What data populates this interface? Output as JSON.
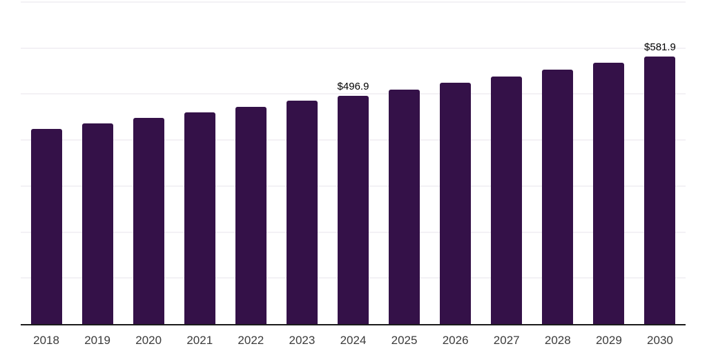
{
  "chart_data": {
    "type": "bar",
    "title": "",
    "xlabel": "",
    "ylabel": "",
    "categories": [
      "2018",
      "2019",
      "2020",
      "2021",
      "2022",
      "2023",
      "2024",
      "2025",
      "2026",
      "2027",
      "2028",
      "2029",
      "2030"
    ],
    "values": [
      424.6,
      435.8,
      447.6,
      459.7,
      472.8,
      486.0,
      496.9,
      509.6,
      523.9,
      538.5,
      552.6,
      567.4,
      581.9
    ],
    "data_labels": {
      "2024": "$496.9",
      "2030": "$581.9"
    },
    "ylim": [
      0,
      700
    ],
    "gridline_step": 100,
    "grid": true,
    "legend_position": "none",
    "colors": {
      "bar": "#341148",
      "axis_line": "#1a1a1a",
      "gridline": "#f3f1f5",
      "tick_label": "#3b3b3b",
      "data_label": "#000000",
      "background": "#ffffff"
    }
  }
}
